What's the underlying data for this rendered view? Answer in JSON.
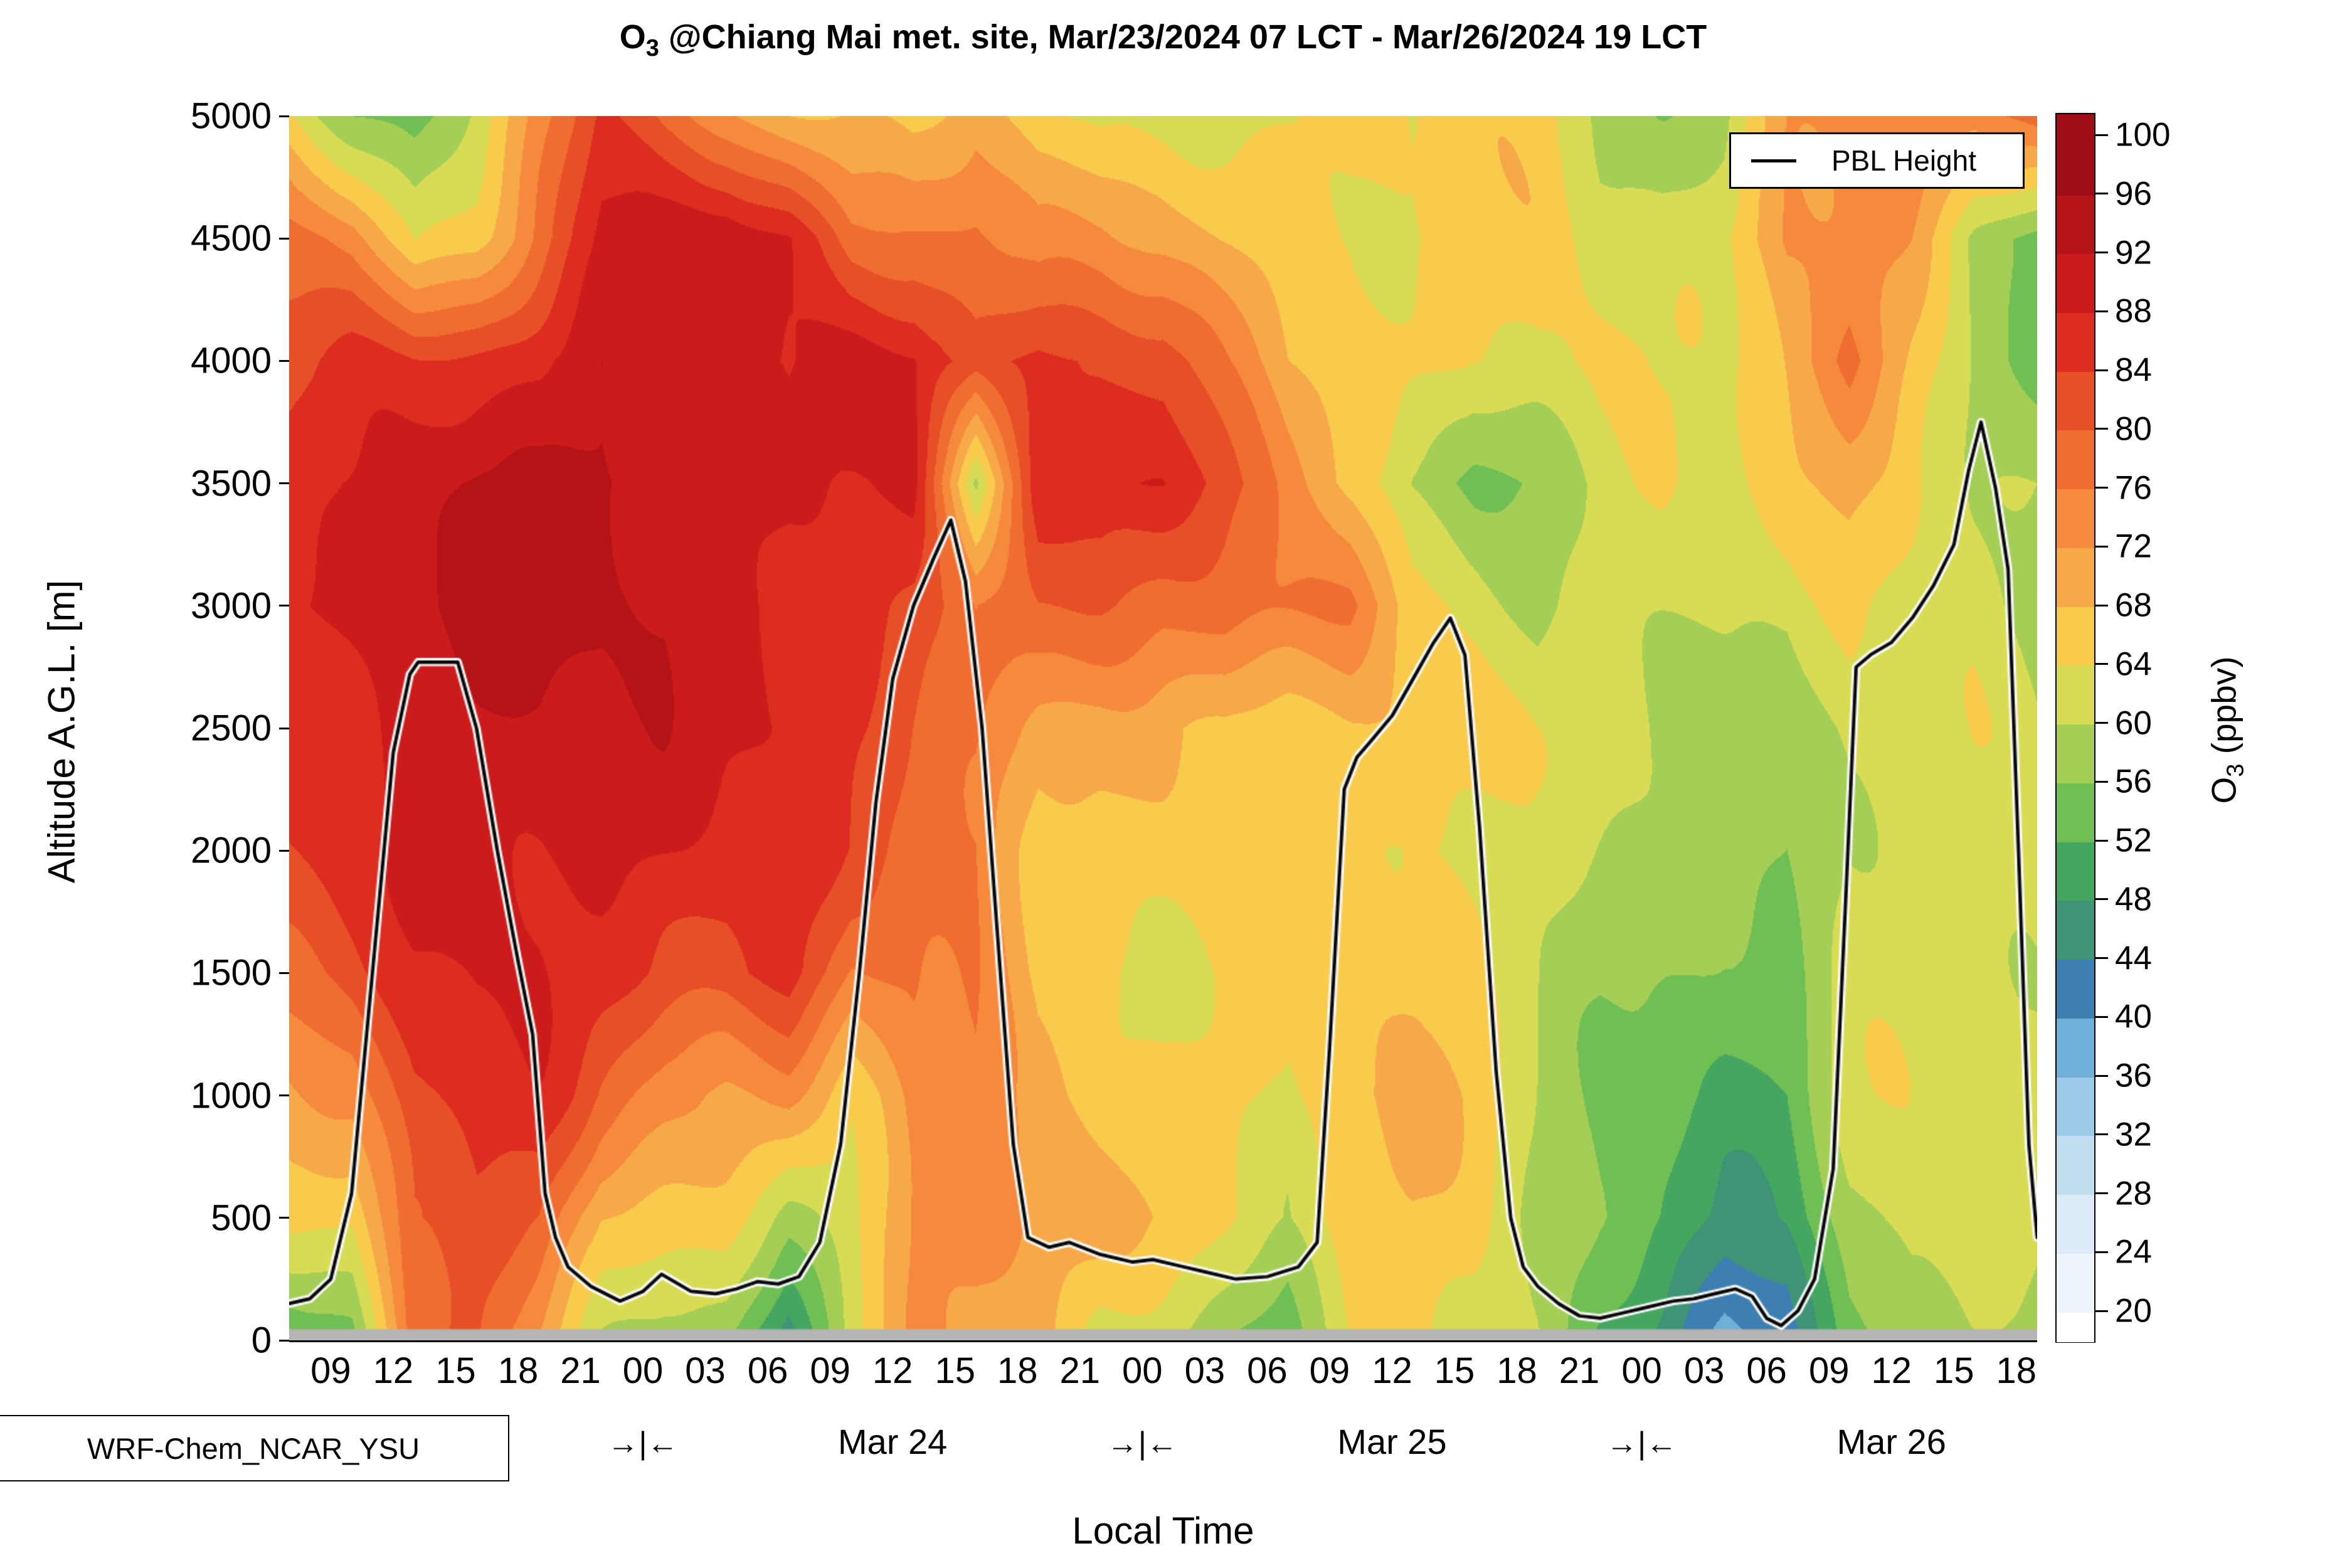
{
  "title": {
    "o3": "O",
    "o3_sub": "3",
    "rest": " @Chiang Mai met. site, Mar/23/2024 07 LCT - Mar/26/2024 19 LCT"
  },
  "axes": {
    "y_label": "Altitude A.G.L. [m]",
    "x_label": "Local Time",
    "y_tick_values": [
      0,
      500,
      1000,
      1500,
      2000,
      2500,
      3000,
      3500,
      4000,
      4500,
      5000
    ],
    "y_tick_labels": [
      "0",
      "500",
      "1000",
      "1500",
      "2000",
      "2500",
      "3000",
      "3500",
      "4000",
      "4500",
      "5000"
    ],
    "x_ticks": [
      {
        "h": 2,
        "label": "09"
      },
      {
        "h": 5,
        "label": "12"
      },
      {
        "h": 8,
        "label": "15"
      },
      {
        "h": 11,
        "label": "18"
      },
      {
        "h": 14,
        "label": "21"
      },
      {
        "h": 17,
        "label": "00"
      },
      {
        "h": 20,
        "label": "03"
      },
      {
        "h": 23,
        "label": "06"
      },
      {
        "h": 26,
        "label": "09"
      },
      {
        "h": 29,
        "label": "12"
      },
      {
        "h": 32,
        "label": "15"
      },
      {
        "h": 35,
        "label": "18"
      },
      {
        "h": 38,
        "label": "21"
      },
      {
        "h": 41,
        "label": "00"
      },
      {
        "h": 44,
        "label": "03"
      },
      {
        "h": 47,
        "label": "06"
      },
      {
        "h": 50,
        "label": "09"
      },
      {
        "h": 53,
        "label": "12"
      },
      {
        "h": 56,
        "label": "15"
      },
      {
        "h": 59,
        "label": "18"
      },
      {
        "h": 62,
        "label": "21"
      },
      {
        "h": 65,
        "label": "00"
      },
      {
        "h": 68,
        "label": "03"
      },
      {
        "h": 71,
        "label": "06"
      },
      {
        "h": 74,
        "label": "09"
      },
      {
        "h": 77,
        "label": "12"
      },
      {
        "h": 80,
        "label": "15"
      },
      {
        "h": 83,
        "label": "18"
      }
    ],
    "day_separator_glyph": "→|←",
    "day_separators_h": [
      17,
      41,
      65
    ],
    "day_labels": [
      {
        "h": 29,
        "label": "Mar 24"
      },
      {
        "h": 53,
        "label": "Mar 25"
      },
      {
        "h": 77,
        "label": "Mar 26"
      }
    ]
  },
  "legend": {
    "label": "PBL Height"
  },
  "model_label": "WRF-Chem_NCAR_YSU",
  "colorbar": {
    "title_o3": "O",
    "title_o3_sub": "3",
    "title_unit": " (ppbv)",
    "tick_values": [
      100,
      96,
      92,
      88,
      84,
      80,
      76,
      72,
      68,
      64,
      60,
      56,
      52,
      48,
      44,
      40,
      36,
      32,
      28,
      24,
      20
    ],
    "level_min": 20,
    "level_max": 100,
    "level_step": 4,
    "band_colors_low_to_high": [
      "#ffffff",
      "#edf5fb",
      "#dcebf7",
      "#c3def1",
      "#9dcbe7",
      "#6fafd8",
      "#3d7eb3",
      "#3f9478",
      "#45a65f",
      "#6fbf55",
      "#a5ce56",
      "#d8dc55",
      "#f9cb4d",
      "#f7a94a",
      "#f58a3d",
      "#f06d31",
      "#e74f27",
      "#dd2d20",
      "#cc1b1b",
      "#b41318",
      "#9c0d14"
    ]
  },
  "chart_data": {
    "type": "heatmap",
    "title": "O3 @Chiang Mai met. site, Mar/23/2024 07 LCT - Mar/26/2024 19 LCT",
    "xlabel": "Local Time",
    "ylabel": "Altitude A.G.L. [m]",
    "value_label": "O3 (ppbv)",
    "x_unit": "hours since Mar/23/2024 07:00 LCT",
    "x_range": [
      0,
      84
    ],
    "y_range_m": [
      0,
      5000
    ],
    "grid_on": false,
    "legend_position": "upper right",
    "terrain_color": "#b5b5b5",
    "terrain_depth_m": 45,
    "grid_hours": [
      0,
      3,
      6,
      9,
      12,
      15,
      18,
      21,
      24,
      27,
      30,
      33,
      36,
      39,
      42,
      45,
      48,
      51,
      54,
      57,
      60,
      63,
      66,
      69,
      72,
      75,
      78,
      81,
      84
    ],
    "grid_altitudes_m": [
      0,
      500,
      1000,
      1500,
      2000,
      2500,
      3000,
      3500,
      4000,
      4500,
      5000
    ],
    "o3_ppbv_columns_bottom_to_top": [
      [
        50,
        64,
        72,
        80,
        84,
        86,
        88,
        86,
        82,
        78,
        66
      ],
      [
        54,
        64,
        74,
        82,
        86,
        88,
        90,
        88,
        84,
        74,
        58
      ],
      [
        78,
        82,
        84,
        86,
        88,
        90,
        92,
        90,
        84,
        64,
        54
      ],
      [
        80,
        84,
        86,
        88,
        90,
        92,
        94,
        92,
        86,
        68,
        60
      ],
      [
        72,
        80,
        86,
        88,
        90,
        92,
        94,
        92,
        88,
        78,
        74
      ],
      [
        62,
        68,
        78,
        86,
        90,
        90,
        92,
        94,
        92,
        88,
        84
      ],
      [
        58,
        66,
        74,
        84,
        88,
        90,
        92,
        92,
        90,
        90,
        78
      ],
      [
        56,
        64,
        72,
        84,
        86,
        88,
        90,
        90,
        88,
        92,
        74
      ],
      [
        44,
        58,
        74,
        86,
        86,
        88,
        88,
        88,
        86,
        88,
        70
      ],
      [
        62,
        64,
        66,
        74,
        82,
        86,
        88,
        88,
        90,
        78,
        68
      ],
      [
        72,
        74,
        74,
        76,
        78,
        80,
        82,
        88,
        90,
        78,
        66
      ],
      [
        72,
        74,
        74,
        76,
        78,
        78,
        74,
        58,
        82,
        78,
        70
      ],
      [
        72,
        72,
        68,
        66,
        66,
        70,
        80,
        88,
        86,
        72,
        64
      ],
      [
        62,
        70,
        66,
        66,
        66,
        68,
        80,
        90,
        84,
        72,
        62
      ],
      [
        60,
        66,
        66,
        64,
        66,
        68,
        78,
        88,
        82,
        70,
        64
      ],
      [
        56,
        64,
        66,
        64,
        64,
        68,
        80,
        82,
        74,
        68,
        64
      ],
      [
        52,
        62,
        64,
        64,
        64,
        66,
        78,
        74,
        68,
        66,
        64
      ],
      [
        64,
        68,
        68,
        66,
        66,
        68,
        76,
        66,
        68,
        66,
        64
      ],
      [
        66,
        68,
        68,
        66,
        66,
        68,
        64,
        58,
        66,
        64,
        64
      ],
      [
        64,
        66,
        66,
        64,
        64,
        66,
        62,
        56,
        64,
        64,
        66
      ],
      [
        60,
        58,
        60,
        62,
        62,
        62,
        58,
        58,
        64,
        66,
        66
      ],
      [
        50,
        54,
        56,
        58,
        60,
        62,
        62,
        62,
        64,
        62,
        60
      ],
      [
        46,
        52,
        54,
        56,
        58,
        60,
        62,
        64,
        62,
        62,
        58
      ],
      [
        38,
        48,
        52,
        54,
        56,
        58,
        62,
        62,
        62,
        64,
        58
      ],
      [
        40,
        50,
        52,
        54,
        56,
        58,
        60,
        66,
        70,
        74,
        72
      ],
      [
        56,
        58,
        62,
        62,
        62,
        62,
        64,
        68,
        78,
        74,
        72
      ],
      [
        60,
        62,
        62,
        62,
        62,
        62,
        62,
        66,
        68,
        70,
        74
      ],
      [
        60,
        62,
        62,
        62,
        62,
        62,
        62,
        62,
        60,
        58,
        72
      ],
      [
        56,
        60,
        62,
        62,
        62,
        60,
        58,
        60,
        54,
        54,
        80
      ]
    ],
    "pbl_height_series_h_m": [
      [
        0,
        150
      ],
      [
        1,
        170
      ],
      [
        2,
        250
      ],
      [
        3,
        600
      ],
      [
        4,
        1500
      ],
      [
        5,
        2400
      ],
      [
        5.8,
        2720
      ],
      [
        6.2,
        2770
      ],
      [
        8.1,
        2770
      ],
      [
        9,
        2500
      ],
      [
        10,
        2000
      ],
      [
        11,
        1550
      ],
      [
        11.7,
        1250
      ],
      [
        12.3,
        600
      ],
      [
        12.8,
        420
      ],
      [
        13.4,
        300
      ],
      [
        14.5,
        220
      ],
      [
        15.9,
        160
      ],
      [
        17,
        200
      ],
      [
        17.9,
        270
      ],
      [
        19.3,
        200
      ],
      [
        20.5,
        190
      ],
      [
        21.5,
        210
      ],
      [
        22.5,
        240
      ],
      [
        23.5,
        230
      ],
      [
        24.5,
        260
      ],
      [
        25.5,
        400
      ],
      [
        26.5,
        800
      ],
      [
        27.4,
        1500
      ],
      [
        28.2,
        2200
      ],
      [
        29,
        2700
      ],
      [
        30,
        3000
      ],
      [
        31,
        3200
      ],
      [
        31.8,
        3350
      ],
      [
        32.5,
        3100
      ],
      [
        33.3,
        2500
      ],
      [
        34,
        1700
      ],
      [
        34.8,
        800
      ],
      [
        35.5,
        420
      ],
      [
        36.5,
        380
      ],
      [
        37.5,
        400
      ],
      [
        39,
        350
      ],
      [
        40.5,
        320
      ],
      [
        41.5,
        330
      ],
      [
        43,
        300
      ],
      [
        44,
        280
      ],
      [
        45.5,
        250
      ],
      [
        47,
        260
      ],
      [
        48.5,
        300
      ],
      [
        49.4,
        400
      ],
      [
        50,
        1200
      ],
      [
        50.7,
        2250
      ],
      [
        51.3,
        2380
      ],
      [
        52,
        2450
      ],
      [
        53,
        2550
      ],
      [
        54,
        2700
      ],
      [
        55,
        2850
      ],
      [
        55.8,
        2950
      ],
      [
        56.5,
        2800
      ],
      [
        57.2,
        2100
      ],
      [
        58,
        1100
      ],
      [
        58.7,
        500
      ],
      [
        59.3,
        300
      ],
      [
        60,
        220
      ],
      [
        61,
        150
      ],
      [
        62,
        100
      ],
      [
        63,
        90
      ],
      [
        64,
        110
      ],
      [
        65,
        130
      ],
      [
        66.5,
        160
      ],
      [
        67.5,
        170
      ],
      [
        68.5,
        190
      ],
      [
        69.5,
        210
      ],
      [
        70.3,
        180
      ],
      [
        71,
        90
      ],
      [
        71.7,
        60
      ],
      [
        72.5,
        120
      ],
      [
        73.3,
        250
      ],
      [
        74.2,
        700
      ],
      [
        74.8,
        1800
      ],
      [
        75.3,
        2750
      ],
      [
        76,
        2800
      ],
      [
        77,
        2850
      ],
      [
        78,
        2950
      ],
      [
        79,
        3080
      ],
      [
        80,
        3250
      ],
      [
        80.7,
        3550
      ],
      [
        81.3,
        3750
      ],
      [
        82,
        3480
      ],
      [
        82.6,
        3150
      ],
      [
        83.1,
        2000
      ],
      [
        83.6,
        800
      ],
      [
        84,
        420
      ]
    ]
  }
}
